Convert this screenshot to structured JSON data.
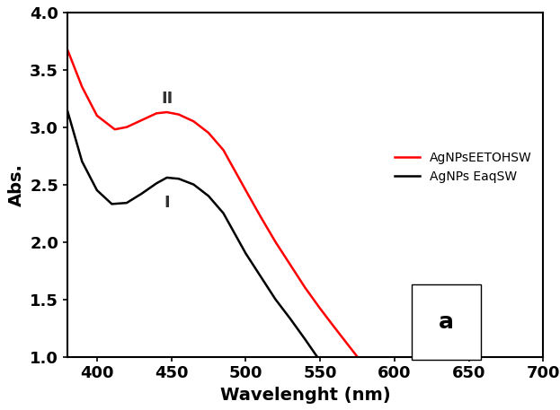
{
  "chart_data": {
    "type": "line",
    "x_label": "Wavelenght (nm)",
    "y_label": "Abs.",
    "xlim": [
      380,
      700
    ],
    "xticks": [
      400,
      450,
      500,
      550,
      600,
      650,
      700
    ],
    "ylim": [
      1.0,
      4.0
    ],
    "yticks": [
      {
        "value": 1.0,
        "label": "1.0"
      },
      1.5,
      {
        "value": 2.0,
        "label": "2.0"
      },
      2.5,
      {
        "value": 3.0,
        "label": "3.0"
      },
      3.5,
      {
        "value": 4.0,
        "label": "4.0"
      }
    ],
    "grid": false,
    "legend": "center right",
    "annotations": [
      "II",
      "I",
      "a"
    ],
    "series": [
      {
        "name": "AgNPsEETOHSW",
        "color": "#ff0000",
        "label": "II",
        "x": [
          380,
          390,
          400,
          412,
          420,
          430,
          440,
          447,
          455,
          465,
          475,
          485,
          500,
          510,
          520,
          530,
          540,
          550,
          560,
          575
        ],
        "values": [
          3.68,
          3.35,
          3.1,
          2.98,
          3.0,
          3.06,
          3.12,
          3.13,
          3.11,
          3.05,
          2.95,
          2.8,
          2.45,
          2.22,
          2.0,
          1.8,
          1.6,
          1.42,
          1.25,
          1.0
        ]
      },
      {
        "name": "AgNPs EaqSW",
        "color": "#000000",
        "label": "I",
        "x": [
          380,
          390,
          400,
          410,
          420,
          430,
          440,
          447,
          455,
          465,
          475,
          485,
          500,
          510,
          520,
          530,
          540,
          548
        ],
        "values": [
          3.15,
          2.7,
          2.45,
          2.33,
          2.34,
          2.42,
          2.51,
          2.56,
          2.55,
          2.5,
          2.4,
          2.25,
          1.9,
          1.7,
          1.5,
          1.33,
          1.15,
          1.0
        ]
      }
    ]
  }
}
